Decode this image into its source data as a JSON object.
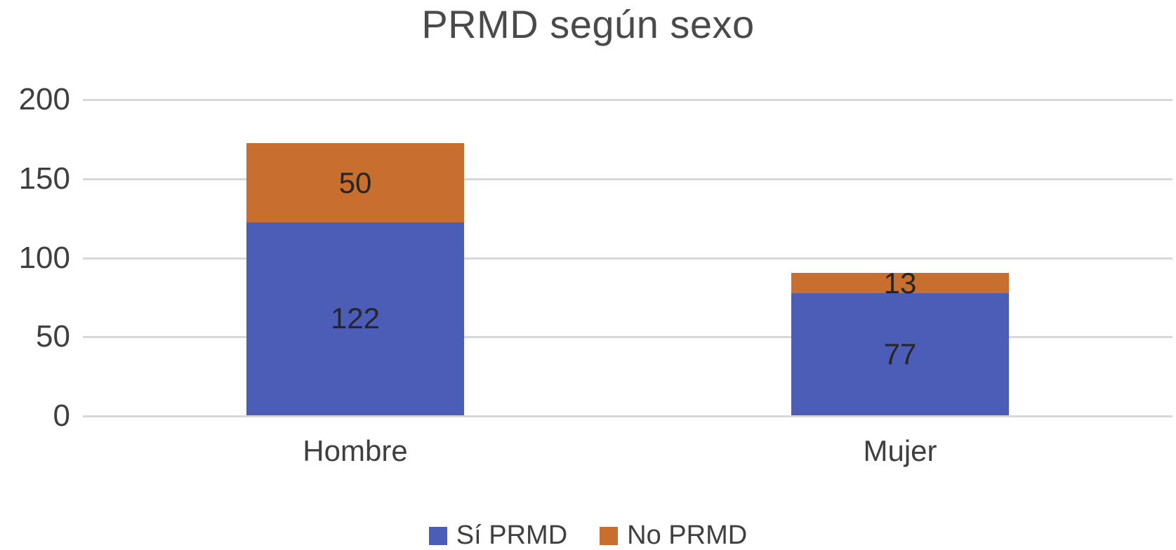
{
  "chart_data": {
    "type": "bar",
    "stacked": true,
    "title": "PRMD según sexo",
    "categories": [
      "Hombre",
      "Mujer"
    ],
    "series": [
      {
        "name": "Sí PRMD",
        "color": "#4c5db7",
        "values": [
          122,
          77
        ]
      },
      {
        "name": "No PRMD",
        "color": "#c86e2e",
        "values": [
          50,
          13
        ]
      }
    ],
    "totals": [
      172,
      90
    ],
    "xlabel": "",
    "ylabel": "",
    "ylim": [
      0,
      200
    ],
    "yticks": [
      0,
      50,
      100,
      150,
      200
    ],
    "grid": true,
    "legend_position": "bottom",
    "data_labels": true
  },
  "colors": {
    "gridline": "#d8d8d8",
    "title_text": "#4a4a4a",
    "axis_text": "#3f3f3f",
    "value_text": "#262626",
    "background": "#ffffff"
  }
}
